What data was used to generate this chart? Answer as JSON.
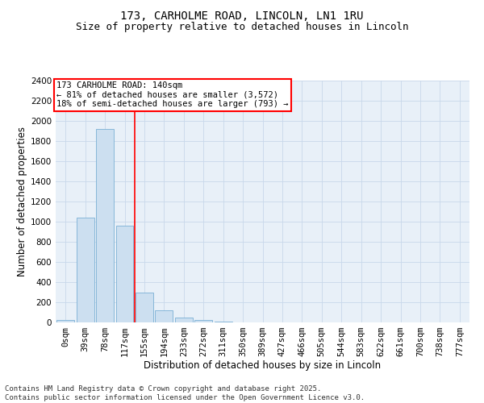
{
  "title_line1": "173, CARHOLME ROAD, LINCOLN, LN1 1RU",
  "title_line2": "Size of property relative to detached houses in Lincoln",
  "xlabel": "Distribution of detached houses by size in Lincoln",
  "ylabel": "Number of detached properties",
  "bin_labels": [
    "0sqm",
    "39sqm",
    "78sqm",
    "117sqm",
    "155sqm",
    "194sqm",
    "233sqm",
    "272sqm",
    "311sqm",
    "350sqm",
    "389sqm",
    "427sqm",
    "466sqm",
    "505sqm",
    "544sqm",
    "583sqm",
    "622sqm",
    "661sqm",
    "700sqm",
    "738sqm",
    "777sqm"
  ],
  "bar_values": [
    25,
    1040,
    1920,
    960,
    300,
    120,
    50,
    25,
    8,
    3,
    1,
    0,
    0,
    0,
    0,
    0,
    0,
    0,
    0,
    0,
    0
  ],
  "bar_color": "#ccdff0",
  "bar_edgecolor": "#7aafd4",
  "grid_color": "#c8d8ea",
  "background_color": "#e8f0f8",
  "ylim": [
    0,
    2400
  ],
  "yticks": [
    0,
    200,
    400,
    600,
    800,
    1000,
    1200,
    1400,
    1600,
    1800,
    2000,
    2200,
    2400
  ],
  "vline_x": 3.5,
  "vline_color": "red",
  "annotation_text": "173 CARHOLME ROAD: 140sqm\n← 81% of detached houses are smaller (3,572)\n18% of semi-detached houses are larger (793) →",
  "annotation_box_color": "white",
  "annotation_box_edgecolor": "red",
  "footer_text": "Contains HM Land Registry data © Crown copyright and database right 2025.\nContains public sector information licensed under the Open Government Licence v3.0.",
  "title_fontsize": 10,
  "subtitle_fontsize": 9,
  "annotation_fontsize": 7.5,
  "footer_fontsize": 6.5,
  "xlabel_fontsize": 8.5,
  "ylabel_fontsize": 8.5,
  "tick_fontsize": 7.5
}
